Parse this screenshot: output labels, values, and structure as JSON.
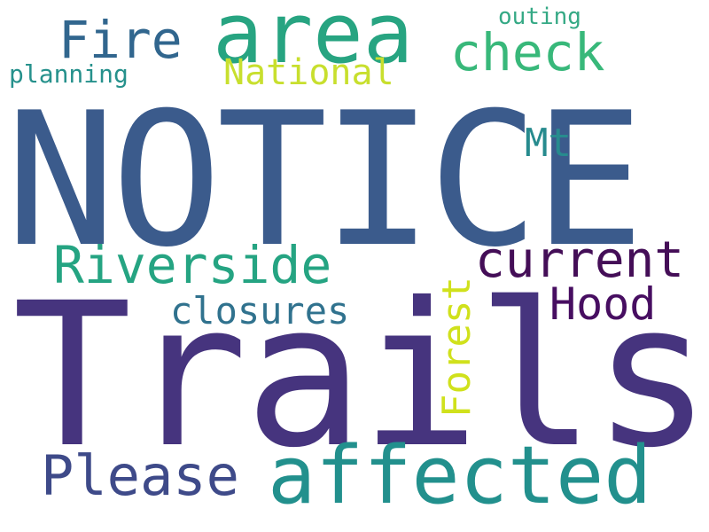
{
  "words": {
    "notice": "NOTICE",
    "trails": "Trails",
    "area": "area",
    "fire": "Fire",
    "check": "check",
    "outing": "outing",
    "planning": "planning",
    "national": "National",
    "mt": "Mt",
    "riverside": "Riverside",
    "current": "current",
    "closures": "closures",
    "hood": "Hood",
    "forest": "Forest",
    "please": "Please",
    "affected": "affected"
  }
}
